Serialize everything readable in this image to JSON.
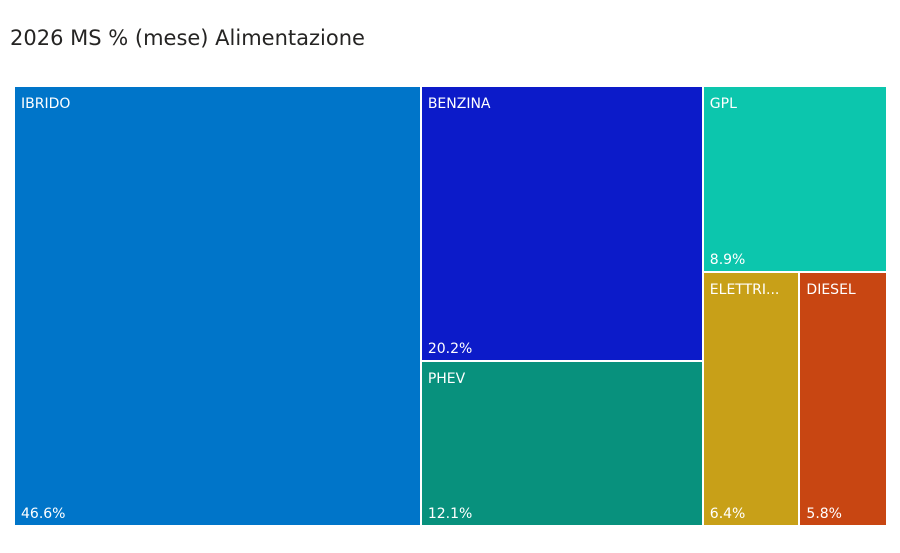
{
  "chart_data": {
    "type": "treemap",
    "title": "2026 MS % (mese) Alimentazione",
    "items": [
      {
        "label": "IBRIDO",
        "value": 46.6,
        "display_value": "46.6%",
        "color": "#0075C9"
      },
      {
        "label": "BENZINA",
        "value": 20.2,
        "display_value": "20.2%",
        "color": "#0C1BC9"
      },
      {
        "label": "PHEV",
        "value": 12.1,
        "display_value": "12.1%",
        "color": "#08917D"
      },
      {
        "label": "GPL",
        "value": 8.9,
        "display_value": "8.9%",
        "color": "#0CC6AD"
      },
      {
        "label": "ELETTRI...",
        "value": 6.4,
        "display_value": "6.4%",
        "color": "#C8A018"
      },
      {
        "label": "DIESEL",
        "value": 5.8,
        "display_value": "5.8%",
        "color": "#C84612"
      }
    ]
  }
}
